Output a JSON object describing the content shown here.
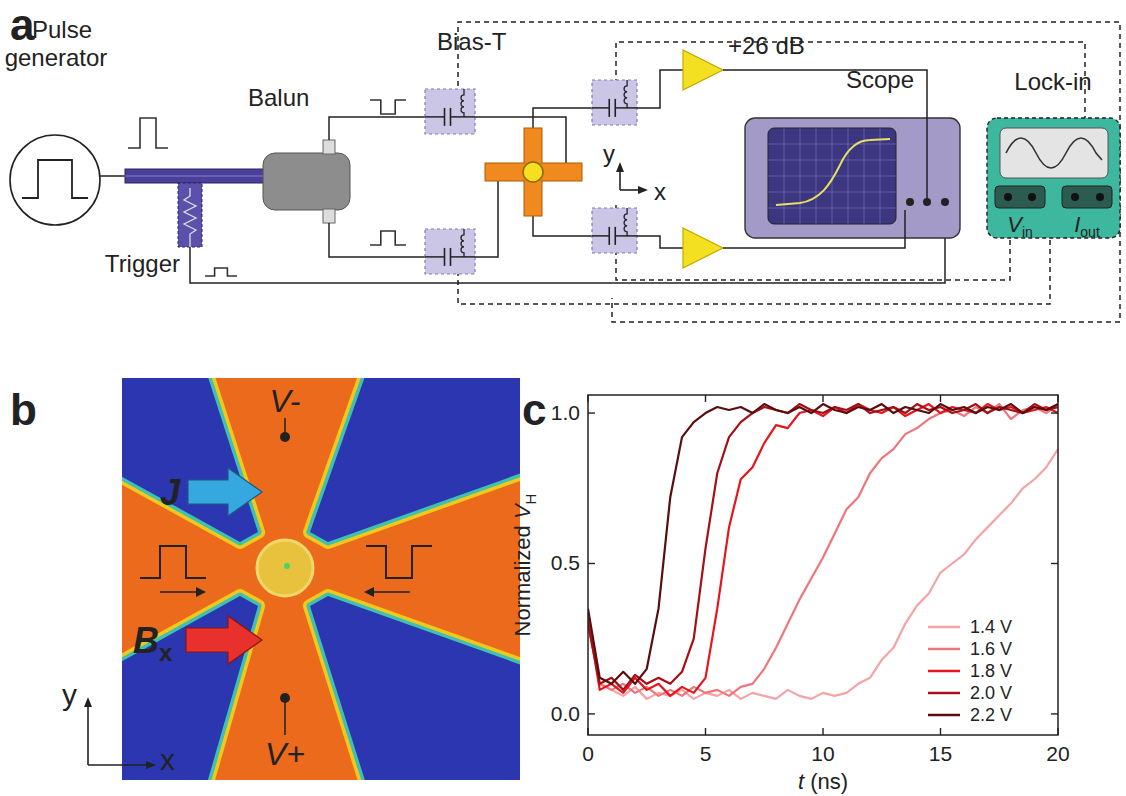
{
  "panel_labels": [
    "a",
    "b",
    "c"
  ],
  "diagram": {
    "pulse_generator": [
      "Pulse",
      "generator"
    ],
    "balun": "Balun",
    "bias_t": "Bias-T",
    "amplifier": "+26 dB",
    "scope": "Scope",
    "lock_in": "Lock-in",
    "lock_in_ports": [
      {
        "symbol": "V",
        "subscript": "in"
      },
      {
        "symbol": "I",
        "subscript": "out"
      }
    ],
    "trigger": "Trigger",
    "axes": [
      "y",
      "x"
    ]
  },
  "image": {
    "probes": [
      "V-",
      "V+"
    ],
    "current": "J",
    "field": {
      "symbol": "B",
      "subscript": "x"
    },
    "axes": [
      "y",
      "x"
    ]
  },
  "chart_data": {
    "type": "line",
    "xlabel": {
      "symbol": "t",
      "suffix": " (ns)"
    },
    "ylabel": {
      "prefix": "Normalized ",
      "symbol": "V",
      "subscript": "H"
    },
    "x": [
      0,
      0.5,
      1,
      1.5,
      2,
      2.5,
      3,
      3.5,
      4,
      4.5,
      5,
      5.5,
      6,
      6.5,
      7,
      7.5,
      8,
      8.5,
      9,
      9.5,
      10,
      10.5,
      11,
      11.5,
      12,
      12.5,
      13,
      13.5,
      14,
      14.5,
      15,
      15.5,
      16,
      16.5,
      17,
      17.5,
      18,
      18.5,
      19,
      19.5,
      20
    ],
    "series": [
      {
        "name": "1.4 V",
        "color": "#f4a3a6",
        "values": [
          0.3,
          0.1,
          0.08,
          0.06,
          0.09,
          0.05,
          0.07,
          0.06,
          0.08,
          0.05,
          0.07,
          0.06,
          0.08,
          0.05,
          0.07,
          0.06,
          0.05,
          0.08,
          0.06,
          0.05,
          0.07,
          0.06,
          0.07,
          0.1,
          0.12,
          0.18,
          0.22,
          0.3,
          0.36,
          0.4,
          0.47,
          0.5,
          0.53,
          0.58,
          0.62,
          0.66,
          0.7,
          0.75,
          0.78,
          0.82,
          0.88
        ]
      },
      {
        "name": "1.6 V",
        "color": "#ee767b",
        "values": [
          0.3,
          0.1,
          0.08,
          0.1,
          0.07,
          0.09,
          0.06,
          0.08,
          0.06,
          0.09,
          0.07,
          0.08,
          0.06,
          0.09,
          0.1,
          0.15,
          0.22,
          0.3,
          0.38,
          0.45,
          0.52,
          0.6,
          0.68,
          0.72,
          0.8,
          0.85,
          0.88,
          0.93,
          0.95,
          0.98,
          1.0,
          1.01,
          0.99,
          1.02,
          1.0,
          1.03,
          0.98,
          1.01,
          1.02,
          1.0,
          1.03
        ]
      },
      {
        "name": "1.8 V",
        "color": "#e8141c",
        "values": [
          0.32,
          0.08,
          0.1,
          0.07,
          0.12,
          0.08,
          0.1,
          0.06,
          0.09,
          0.07,
          0.12,
          0.35,
          0.62,
          0.78,
          0.82,
          0.9,
          0.96,
          0.95,
          1.0,
          1.01,
          0.99,
          1.02,
          1.0,
          1.03,
          1.01,
          1.0,
          1.02,
          0.99,
          1.01,
          1.03,
          1.0,
          1.02,
          1.01,
          1.0,
          1.03,
          1.01,
          1.02,
          1.0,
          1.01,
          1.02,
          1.0
        ]
      },
      {
        "name": "2.0 V",
        "color": "#a50f15",
        "values": [
          0.3,
          0.1,
          0.12,
          0.08,
          0.13,
          0.1,
          0.12,
          0.1,
          0.14,
          0.25,
          0.55,
          0.8,
          0.92,
          0.97,
          1.0,
          1.02,
          1.01,
          1.0,
          1.03,
          1.01,
          1.0,
          1.02,
          1.01,
          1.03,
          1.0,
          1.01,
          1.02,
          1.0,
          1.03,
          1.01,
          1.02,
          1.0,
          1.01,
          1.03,
          1.0,
          1.02,
          1.01,
          1.0,
          1.03,
          1.01,
          1.02
        ]
      },
      {
        "name": "2.2 V",
        "color": "#5a0c0e",
        "values": [
          0.35,
          0.12,
          0.1,
          0.14,
          0.1,
          0.15,
          0.35,
          0.72,
          0.92,
          0.97,
          1.0,
          1.02,
          1.01,
          1.02,
          1.0,
          1.03,
          1.01,
          1.0,
          1.02,
          1.0,
          1.03,
          1.01,
          1.0,
          1.02,
          1.01,
          1.03,
          1.0,
          1.02,
          1.01,
          1.0,
          1.03,
          1.01,
          1.02,
          1.0,
          1.02,
          1.01,
          1.03,
          1.0,
          1.02,
          1.01,
          1.03
        ]
      }
    ],
    "xlim": [
      0,
      20
    ],
    "ylim": [
      -0.07,
      1.06
    ],
    "xticks": [
      0,
      5,
      10,
      15,
      20
    ],
    "yticks": [
      {
        "value": 0,
        "label": "0.0"
      },
      {
        "value": 0.5,
        "label": "0.5"
      },
      {
        "value": 1,
        "label": "1.0"
      }
    ],
    "legend": "lower right",
    "grid": false
  }
}
